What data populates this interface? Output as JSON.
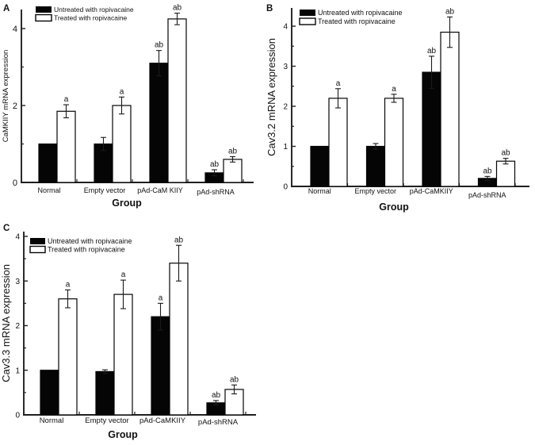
{
  "figure": {
    "background": "#ffffff",
    "axis_color": "#1f1f1f",
    "bar_untreated_fill": "#050505",
    "bar_treated_fill": "#ffffff",
    "bar_stroke": "#050505",
    "error_bar_color": "#1a1a1a"
  },
  "legend": {
    "untreated_label": "Untreated with ropivacaine",
    "treated_label": "Treated with ropivacaine"
  },
  "chart_data": [
    {
      "type": "bar",
      "panel_letter": "A",
      "ylabel": "CaMKIIY mRNA expression",
      "xlabel": "Group",
      "categories": [
        "Normal",
        "Empty vector",
        "pAd-CaM KIIY",
        "pAd-shRNA"
      ],
      "ylim": [
        0,
        4.5
      ],
      "yticks_major": [
        0,
        2,
        4
      ],
      "yticks_minor": [
        1,
        3
      ],
      "grid": false,
      "legend_position": "top-left-inside",
      "series": [
        {
          "name": "Untreated with ropivacaine",
          "values": [
            1.0,
            1.0,
            3.1,
            0.25
          ],
          "errors": [
            0,
            0.17,
            0.33,
            0.08
          ],
          "sig_labels": [
            "",
            "",
            "ab",
            "ab"
          ]
        },
        {
          "name": "Treated with ropivacaine",
          "values": [
            1.85,
            2.0,
            4.25,
            0.6
          ],
          "errors": [
            0.17,
            0.22,
            0.15,
            0.07
          ],
          "sig_labels": [
            "a",
            "a",
            "ab",
            "ab"
          ]
        }
      ]
    },
    {
      "type": "bar",
      "panel_letter": "B",
      "ylabel": "Cav3.2 mRNA expression",
      "xlabel": "Group",
      "categories": [
        "Normal",
        "Empty vector",
        "pAd-CaMKIIY",
        "pAd-shRNA"
      ],
      "ylim": [
        0,
        4.45
      ],
      "yticks_major": [
        0,
        1,
        2,
        3,
        4
      ],
      "yticks_minor": [
        0.5,
        1.5,
        2.5,
        3.5
      ],
      "grid": false,
      "legend_position": "top-left-inside",
      "series": [
        {
          "name": "Untreated with ropivacaine",
          "values": [
            1.0,
            1.0,
            2.85,
            0.2
          ],
          "errors": [
            0,
            0.07,
            0.4,
            0.05
          ],
          "sig_labels": [
            "",
            "",
            "ab",
            "ab"
          ]
        },
        {
          "name": "Treated with ropivacaine",
          "values": [
            2.2,
            2.2,
            3.85,
            0.63
          ],
          "errors": [
            0.24,
            0.1,
            0.38,
            0.07
          ],
          "sig_labels": [
            "a",
            "a",
            "ab",
            "ab"
          ]
        }
      ]
    },
    {
      "type": "bar",
      "panel_letter": "C",
      "ylabel": "Cav3.3 mRNA expression",
      "xlabel": "Group",
      "categories": [
        "Normal",
        "Empty vector",
        "pAd-CaMKIIY",
        "pAd-shRNA"
      ],
      "ylim": [
        0,
        4.1
      ],
      "yticks_major": [
        0,
        1,
        2,
        3,
        4
      ],
      "yticks_minor": [
        0.5,
        1.5,
        2.5,
        3.5
      ],
      "grid": false,
      "legend_position": "top-left-inside",
      "series": [
        {
          "name": "Untreated with ropivacaine",
          "values": [
            1.0,
            0.97,
            2.2,
            0.27
          ],
          "errors": [
            0,
            0.04,
            0.3,
            0.05
          ],
          "sig_labels": [
            "",
            "",
            "a",
            "ab"
          ]
        },
        {
          "name": "Treated with ropivacaine",
          "values": [
            2.6,
            2.7,
            3.4,
            0.57
          ],
          "errors": [
            0.2,
            0.32,
            0.4,
            0.1
          ],
          "sig_labels": [
            "a",
            "a",
            "ab",
            "ab"
          ]
        }
      ]
    }
  ]
}
